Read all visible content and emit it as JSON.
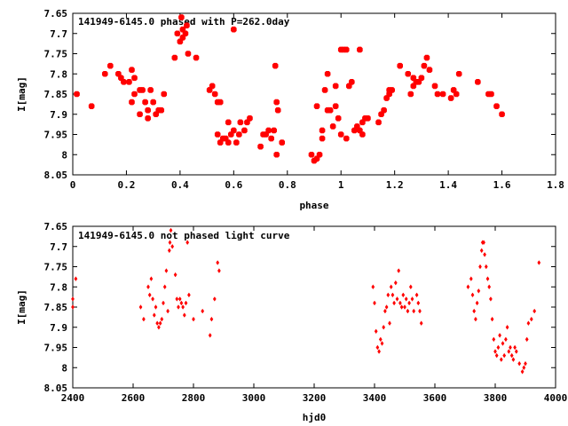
{
  "chart_data": [
    {
      "type": "scatter",
      "title": "141949-6145.0 phased with P=262.0day",
      "xlabel": "phase",
      "ylabel": "I[mag]",
      "xlim": [
        0,
        1.8
      ],
      "ylim": [
        8.05,
        7.65
      ],
      "y_inverted": true,
      "xticks": [
        "0",
        "0.2",
        "0.4",
        "0.6",
        "0.8",
        "1",
        "1.2",
        "1.4",
        "1.6",
        "1.8"
      ],
      "yticks": [
        "7.65",
        "7.7",
        "7.75",
        "7.8",
        "7.85",
        "7.9",
        "7.95",
        "8",
        "8.05"
      ],
      "color": "#ff0000",
      "marker": "filled-square",
      "grid": false,
      "points": [
        [
          0.015,
          7.85
        ],
        [
          0.07,
          7.88
        ],
        [
          0.12,
          7.8
        ],
        [
          0.14,
          7.78
        ],
        [
          0.17,
          7.8
        ],
        [
          0.18,
          7.81
        ],
        [
          0.19,
          7.82
        ],
        [
          0.21,
          7.82
        ],
        [
          0.22,
          7.79
        ],
        [
          0.23,
          7.81
        ],
        [
          0.22,
          7.87
        ],
        [
          0.23,
          7.85
        ],
        [
          0.25,
          7.84
        ],
        [
          0.25,
          7.9
        ],
        [
          0.26,
          7.84
        ],
        [
          0.27,
          7.87
        ],
        [
          0.28,
          7.89
        ],
        [
          0.28,
          7.91
        ],
        [
          0.29,
          7.84
        ],
        [
          0.3,
          7.87
        ],
        [
          0.31,
          7.9
        ],
        [
          0.32,
          7.89
        ],
        [
          0.33,
          7.89
        ],
        [
          0.34,
          7.85
        ],
        [
          0.38,
          7.76
        ],
        [
          0.39,
          7.7
        ],
        [
          0.4,
          7.72
        ],
        [
          0.405,
          7.66
        ],
        [
          0.41,
          7.69
        ],
        [
          0.41,
          7.71
        ],
        [
          0.42,
          7.7
        ],
        [
          0.425,
          7.68
        ],
        [
          0.43,
          7.75
        ],
        [
          0.46,
          7.76
        ],
        [
          0.51,
          7.84
        ],
        [
          0.52,
          7.83
        ],
        [
          0.53,
          7.85
        ],
        [
          0.54,
          7.87
        ],
        [
          0.54,
          7.95
        ],
        [
          0.55,
          7.87
        ],
        [
          0.55,
          7.97
        ],
        [
          0.56,
          7.96
        ],
        [
          0.57,
          7.96
        ],
        [
          0.58,
          7.92
        ],
        [
          0.58,
          7.97
        ],
        [
          0.59,
          7.95
        ],
        [
          0.6,
          7.94
        ],
        [
          0.61,
          7.97
        ],
        [
          0.62,
          7.95
        ],
        [
          0.625,
          7.92
        ],
        [
          0.64,
          7.94
        ],
        [
          0.65,
          7.92
        ],
        [
          0.66,
          7.91
        ],
        [
          0.6,
          7.69
        ],
        [
          0.7,
          7.98
        ],
        [
          0.71,
          7.95
        ],
        [
          0.72,
          7.95
        ],
        [
          0.73,
          7.94
        ],
        [
          0.74,
          7.96
        ],
        [
          0.75,
          7.94
        ],
        [
          0.755,
          7.78
        ],
        [
          0.76,
          7.87
        ],
        [
          0.765,
          7.89
        ],
        [
          0.78,
          7.97
        ],
        [
          0.76,
          8.0
        ],
        [
          0.89,
          8.0
        ],
        [
          0.9,
          8.015
        ],
        [
          0.91,
          8.01
        ],
        [
          0.91,
          7.88
        ],
        [
          0.92,
          8.0
        ],
        [
          0.93,
          7.94
        ],
        [
          0.93,
          7.96
        ],
        [
          0.94,
          7.84
        ],
        [
          0.95,
          7.8
        ],
        [
          0.95,
          7.89
        ],
        [
          0.96,
          7.89
        ],
        [
          0.97,
          7.93
        ],
        [
          0.98,
          7.83
        ],
        [
          0.98,
          7.88
        ],
        [
          0.99,
          7.91
        ],
        [
          1.0,
          7.95
        ],
        [
          1.0,
          7.74
        ],
        [
          1.01,
          7.74
        ],
        [
          1.02,
          7.74
        ],
        [
          1.02,
          7.96
        ],
        [
          1.03,
          7.83
        ],
        [
          1.04,
          7.82
        ],
        [
          1.05,
          7.94
        ],
        [
          1.06,
          7.93
        ],
        [
          1.07,
          7.94
        ],
        [
          1.07,
          7.74
        ],
        [
          1.08,
          7.95
        ],
        [
          1.08,
          7.92
        ],
        [
          1.09,
          7.91
        ],
        [
          1.1,
          7.91
        ],
        [
          1.14,
          7.92
        ],
        [
          1.15,
          7.9
        ],
        [
          1.16,
          7.89
        ],
        [
          1.17,
          7.86
        ],
        [
          1.18,
          7.84
        ],
        [
          1.18,
          7.85
        ],
        [
          1.19,
          7.84
        ],
        [
          1.22,
          7.78
        ],
        [
          1.25,
          7.8
        ],
        [
          1.26,
          7.85
        ],
        [
          1.27,
          7.81
        ],
        [
          1.27,
          7.83
        ],
        [
          1.28,
          7.82
        ],
        [
          1.29,
          7.82
        ],
        [
          1.3,
          7.81
        ],
        [
          1.31,
          7.78
        ],
        [
          1.32,
          7.76
        ],
        [
          1.33,
          7.79
        ],
        [
          1.35,
          7.83
        ],
        [
          1.36,
          7.85
        ],
        [
          1.38,
          7.85
        ],
        [
          1.41,
          7.86
        ],
        [
          1.42,
          7.84
        ],
        [
          1.43,
          7.85
        ],
        [
          1.44,
          7.8
        ],
        [
          1.51,
          7.82
        ],
        [
          1.55,
          7.85
        ],
        [
          1.56,
          7.85
        ],
        [
          1.58,
          7.88
        ],
        [
          1.6,
          7.9
        ]
      ]
    },
    {
      "type": "scatter",
      "title": "141949-6145.0 not phased light curve",
      "xlabel": "hjd0",
      "ylabel": "I[mag]",
      "xlim": [
        2400,
        4000
      ],
      "ylim": [
        8.05,
        7.65
      ],
      "y_inverted": true,
      "xticks": [
        "2400",
        "2600",
        "2800",
        "3000",
        "3200",
        "3400",
        "3600",
        "3800",
        "4000"
      ],
      "yticks": [
        "7.65",
        "7.7",
        "7.75",
        "7.8",
        "7.85",
        "7.9",
        "7.95",
        "8",
        "8.05"
      ],
      "color": "#ff0000",
      "marker": "small-diamond",
      "grid": false,
      "points": [
        [
          2400,
          7.83
        ],
        [
          2400,
          7.85
        ],
        [
          2410,
          7.78
        ],
        [
          2625,
          7.85
        ],
        [
          2635,
          7.88
        ],
        [
          2650,
          7.8
        ],
        [
          2655,
          7.82
        ],
        [
          2660,
          7.78
        ],
        [
          2665,
          7.83
        ],
        [
          2670,
          7.87
        ],
        [
          2675,
          7.85
        ],
        [
          2680,
          7.89
        ],
        [
          2685,
          7.9
        ],
        [
          2690,
          7.89
        ],
        [
          2695,
          7.88
        ],
        [
          2700,
          7.84
        ],
        [
          2705,
          7.8
        ],
        [
          2710,
          7.76
        ],
        [
          2715,
          7.86
        ],
        [
          2720,
          7.71
        ],
        [
          2722,
          7.69
        ],
        [
          2725,
          7.66
        ],
        [
          2730,
          7.7
        ],
        [
          2740,
          7.77
        ],
        [
          2745,
          7.83
        ],
        [
          2750,
          7.85
        ],
        [
          2755,
          7.83
        ],
        [
          2760,
          7.84
        ],
        [
          2765,
          7.85
        ],
        [
          2770,
          7.87
        ],
        [
          2775,
          7.84
        ],
        [
          2780,
          7.69
        ],
        [
          2785,
          7.82
        ],
        [
          2800,
          7.88
        ],
        [
          2830,
          7.86
        ],
        [
          2855,
          7.92
        ],
        [
          2860,
          7.88
        ],
        [
          2870,
          7.83
        ],
        [
          2880,
          7.74
        ],
        [
          2885,
          7.76
        ],
        [
          3395,
          7.8
        ],
        [
          3400,
          7.84
        ],
        [
          3405,
          7.91
        ],
        [
          3410,
          7.95
        ],
        [
          3415,
          7.96
        ],
        [
          3420,
          7.93
        ],
        [
          3425,
          7.94
        ],
        [
          3430,
          7.9
        ],
        [
          3435,
          7.86
        ],
        [
          3440,
          7.85
        ],
        [
          3445,
          7.82
        ],
        [
          3450,
          7.89
        ],
        [
          3455,
          7.8
        ],
        [
          3460,
          7.82
        ],
        [
          3465,
          7.84
        ],
        [
          3470,
          7.79
        ],
        [
          3475,
          7.83
        ],
        [
          3480,
          7.76
        ],
        [
          3485,
          7.84
        ],
        [
          3490,
          7.85
        ],
        [
          3495,
          7.82
        ],
        [
          3500,
          7.85
        ],
        [
          3505,
          7.83
        ],
        [
          3510,
          7.86
        ],
        [
          3515,
          7.84
        ],
        [
          3520,
          7.8
        ],
        [
          3525,
          7.83
        ],
        [
          3530,
          7.86
        ],
        [
          3540,
          7.82
        ],
        [
          3545,
          7.84
        ],
        [
          3550,
          7.86
        ],
        [
          3555,
          7.89
        ],
        [
          3710,
          7.8
        ],
        [
          3720,
          7.78
        ],
        [
          3725,
          7.82
        ],
        [
          3730,
          7.86
        ],
        [
          3735,
          7.88
        ],
        [
          3740,
          7.84
        ],
        [
          3745,
          7.81
        ],
        [
          3750,
          7.75
        ],
        [
          3755,
          7.71
        ],
        [
          3758,
          7.69
        ],
        [
          3762,
          7.69
        ],
        [
          3765,
          7.72
        ],
        [
          3770,
          7.75
        ],
        [
          3775,
          7.78
        ],
        [
          3780,
          7.8
        ],
        [
          3785,
          7.83
        ],
        [
          3790,
          7.88
        ],
        [
          3795,
          7.93
        ],
        [
          3800,
          7.96
        ],
        [
          3805,
          7.97
        ],
        [
          3810,
          7.95
        ],
        [
          3815,
          7.92
        ],
        [
          3820,
          7.98
        ],
        [
          3825,
          7.94
        ],
        [
          3830,
          7.97
        ],
        [
          3835,
          7.93
        ],
        [
          3840,
          7.9
        ],
        [
          3845,
          7.96
        ],
        [
          3850,
          7.95
        ],
        [
          3855,
          7.97
        ],
        [
          3860,
          7.98
        ],
        [
          3865,
          7.95
        ],
        [
          3870,
          7.96
        ],
        [
          3880,
          7.99
        ],
        [
          3890,
          8.01
        ],
        [
          3895,
          8.0
        ],
        [
          3900,
          7.99
        ],
        [
          3905,
          7.93
        ],
        [
          3910,
          7.89
        ],
        [
          3920,
          7.88
        ],
        [
          3930,
          7.86
        ],
        [
          3945,
          7.74
        ]
      ]
    }
  ]
}
